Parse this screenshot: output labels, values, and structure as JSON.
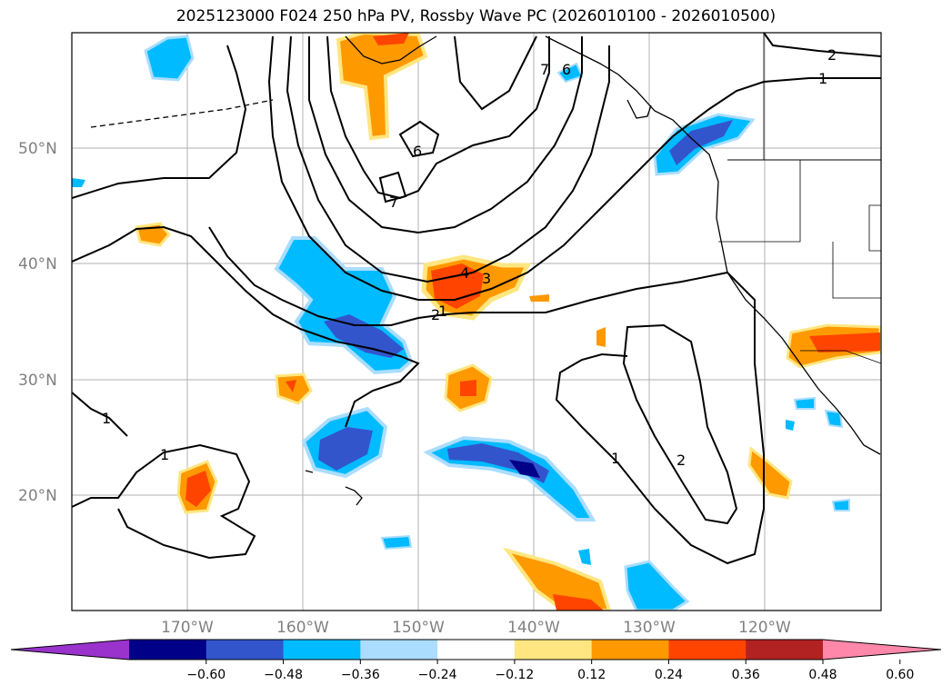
{
  "title": "2025123000 F024 250 hPa PV, Rossby Wave PC (2026010100 - 2026010500)",
  "lat_labels": [
    "50°N",
    "40°N",
    "30°N",
    "20°N"
  ],
  "lon_labels": [
    "170°W",
    "160°W",
    "150°W",
    "140°W",
    "130°W",
    "120°W"
  ],
  "colorbar": {
    "ticks": [
      "−0.60",
      "−0.48",
      "−0.36",
      "−0.24",
      "−0.12",
      "0.12",
      "0.24",
      "0.36",
      "0.48",
      "0.60"
    ],
    "colors": [
      "#9933cc",
      "#000088",
      "#3355cc",
      "#00bbff",
      "#aaddff",
      "#ffffff",
      "#ffe680",
      "#ff9900",
      "#ff4400",
      "#b22222",
      "#ff88aa"
    ]
  },
  "contour_labels": [
    "1",
    "2",
    "4",
    "3",
    "6",
    "7",
    "1",
    "2",
    "1",
    "1",
    "2",
    "1",
    "7",
    "6"
  ],
  "colors": {
    "land": "#000000",
    "grid": "#b0b0b0",
    "contour": "#000000"
  }
}
